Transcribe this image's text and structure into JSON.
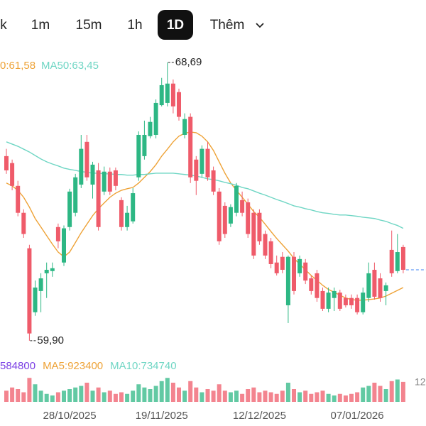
{
  "toolbar": {
    "tabs": [
      "k",
      "1m",
      "15m",
      "1h",
      "1D",
      "Thêm"
    ],
    "active": 4
  },
  "chart_data": {
    "type": "candlestick",
    "categories": [
      null,
      null,
      null,
      null,
      null,
      null,
      null,
      null,
      null,
      null,
      null,
      "28/10/2025",
      null,
      null,
      null,
      null,
      null,
      null,
      null,
      null,
      null,
      null,
      null,
      null,
      null,
      null,
      null,
      "19/11/2025",
      null,
      null,
      null,
      null,
      null,
      null,
      null,
      null,
      null,
      null,
      null,
      null,
      null,
      null,
      null,
      null,
      "12/12/2025",
      null,
      null,
      null,
      null,
      null,
      null,
      null,
      null,
      null,
      null,
      null,
      null,
      null,
      null,
      null,
      null,
      "07/01/2026",
      null,
      null,
      null,
      null,
      null,
      null,
      null,
      null
    ],
    "open": [
      65.73,
      65.51,
      64.79,
      63.94,
      62.82,
      60.8,
      61.47,
      62.03,
      62.1,
      63.49,
      62.37,
      63.49,
      63.94,
      64.83,
      66.18,
      64.83,
      65.28,
      64.61,
      65.24,
      65.28,
      64.34,
      63.49,
      63.67,
      65.06,
      65.73,
      66.36,
      66.4,
      67.34,
      67.41,
      68.02,
      67.75,
      66.4,
      66.97,
      65.62,
      65.17,
      65.96,
      65.28,
      64.61,
      64.16,
      63.6,
      63.94,
      64.34,
      64.27,
      63.94,
      63.94,
      63.27,
      63.04,
      62.37,
      62.55,
      61.02,
      62.55,
      62.03,
      62.37,
      61.87,
      62.03,
      61.47,
      60.91,
      61.25,
      61.42,
      61.25,
      61.25,
      61.25,
      60.8,
      61.25,
      62.14,
      61.87,
      61.47,
      62.77,
      62.1,
      62.86
    ],
    "close": [
      65.28,
      64.79,
      63.94,
      63.27,
      60.13,
      61.58,
      61.87,
      62.14,
      62.19,
      63.04,
      63.45,
      64.61,
      65.06,
      65.96,
      65.06,
      65.46,
      63.49,
      65.24,
      64.61,
      64.79,
      63.49,
      63.94,
      64.56,
      66.4,
      66.4,
      66.81,
      67.41,
      67.97,
      68.02,
      67.3,
      66.97,
      66.9,
      65.06,
      64.95,
      65.96,
      65.06,
      64.61,
      63.04,
      63.27,
      64.12,
      64.79,
      63.94,
      63.27,
      62.59,
      63.04,
      62.59,
      62.32,
      62.03,
      62.14,
      62.55,
      61.47,
      62.48,
      61.8,
      61.47,
      61.25,
      60.91,
      61.42,
      61.47,
      60.91,
      61.02,
      61.02,
      60.8,
      61.42,
      62.03,
      61.29,
      61.25,
      61.65,
      62.03,
      62.7,
      62.14
    ],
    "high": [
      65.96,
      65.62,
      64.95,
      64.05,
      62.93,
      61.8,
      62.03,
      62.37,
      62.37,
      63.6,
      63.54,
      64.7,
      65.17,
      66.4,
      66.4,
      65.55,
      65.51,
      65.4,
      65.37,
      65.37,
      64.43,
      64.16,
      64.72,
      66.51,
      66.85,
      66.97,
      67.52,
      68.2,
      68.69,
      68.15,
      67.86,
      67.08,
      67.08,
      65.73,
      66.07,
      66.18,
      65.4,
      64.72,
      64.27,
      64.21,
      64.88,
      64.61,
      64.39,
      64.05,
      64.05,
      63.38,
      63.15,
      62.59,
      62.7,
      62.59,
      62.7,
      62.59,
      62.48,
      61.96,
      62.14,
      61.58,
      61.58,
      61.58,
      61.51,
      61.36,
      61.36,
      61.36,
      61.58,
      62.37,
      62.37,
      62.03,
      61.74,
      63.38,
      63.27,
      62.93
    ],
    "low": [
      65.17,
      64.65,
      63.83,
      63.15,
      59.9,
      60.69,
      60.8,
      61.25,
      61.92,
      62.82,
      62.26,
      63.38,
      63.83,
      64.72,
      64.95,
      64.39,
      63.38,
      64.5,
      64.5,
      64.65,
      63.38,
      63.38,
      63.6,
      64.95,
      65.62,
      66.29,
      66.29,
      67.3,
      67.3,
      67.08,
      66.85,
      66.29,
      64.88,
      64.5,
      65.06,
      64.95,
      64.5,
      62.93,
      63.15,
      63.49,
      63.83,
      63.83,
      63.15,
      62.48,
      62.93,
      62.48,
      62.19,
      61.96,
      62.03,
      60.46,
      61.36,
      61.92,
      61.69,
      61.36,
      61.13,
      60.84,
      60.8,
      60.84,
      60.84,
      60.95,
      60.91,
      60.73,
      60.73,
      61.13,
      61.2,
      61.13,
      61.02,
      61.92,
      62.03,
      62.03
    ],
    "high_labels": [
      null,
      null,
      null,
      null,
      null,
      null,
      null,
      null,
      null,
      null,
      null,
      null,
      null,
      null,
      null,
      null,
      null,
      null,
      null,
      null,
      null,
      null,
      null,
      null,
      null,
      null,
      null,
      null,
      "68,69",
      null,
      null,
      null,
      null,
      null,
      null,
      null,
      null,
      null,
      null,
      null,
      null,
      null,
      null,
      null,
      null,
      null,
      null,
      null,
      null,
      null,
      null,
      null,
      null,
      null,
      null,
      null,
      null,
      null,
      null,
      null,
      null,
      null,
      null,
      null,
      null,
      null,
      null,
      null,
      null,
      null
    ],
    "low_labels": [
      null,
      null,
      null,
      null,
      "59,90",
      null,
      null,
      null,
      null,
      null,
      null,
      null,
      null,
      null,
      null,
      null,
      null,
      null,
      null,
      null,
      null,
      null,
      null,
      null,
      null,
      null,
      null,
      null,
      null,
      null,
      null,
      null,
      null,
      null,
      null,
      null,
      null,
      null,
      null,
      null,
      null,
      null,
      null,
      null,
      null,
      null,
      null,
      null,
      null,
      null,
      null,
      null,
      null,
      null,
      null,
      null,
      null,
      null,
      null,
      null,
      null,
      null,
      null,
      null,
      null,
      null,
      null,
      null,
      null,
      null
    ],
    "up_color": "#2db784",
    "down_color": "#ef5b6a",
    "last_price_color": "#3b82f6",
    "ylim": [
      59.45,
      69.09
    ],
    "ma": [
      {
        "name": "0:61,58",
        "color": "#eea236",
        "values": [
          64.88,
          64.79,
          64.65,
          64.43,
          64.12,
          63.76,
          63.49,
          63.22,
          62.95,
          62.7,
          62.55,
          62.7,
          63.0,
          63.31,
          63.58,
          63.85,
          64.07,
          64.25,
          64.43,
          64.56,
          64.65,
          64.7,
          64.74,
          64.88,
          65.06,
          65.24,
          65.46,
          65.73,
          65.95,
          66.18,
          66.36,
          66.45,
          66.49,
          66.47,
          66.36,
          66.18,
          65.91,
          65.55,
          65.19,
          64.88,
          64.65,
          64.43,
          64.21,
          63.98,
          63.8,
          63.58,
          63.35,
          63.13,
          62.93,
          62.73,
          62.5,
          62.32,
          62.14,
          61.96,
          61.81,
          61.65,
          61.52,
          61.43,
          61.34,
          61.25,
          61.2,
          61.18,
          61.18,
          61.2,
          61.22,
          61.25,
          61.31,
          61.4,
          61.49,
          61.58
        ]
      },
      {
        "name": "MA50:63,45",
        "color": "#6fd6c4",
        "values": [
          66.18,
          66.11,
          66.04,
          65.95,
          65.86,
          65.75,
          65.64,
          65.55,
          65.48,
          65.42,
          65.35,
          65.31,
          65.28,
          65.24,
          65.22,
          65.19,
          65.19,
          65.17,
          65.17,
          65.15,
          65.15,
          65.13,
          65.13,
          65.15,
          65.15,
          65.17,
          65.19,
          65.19,
          65.19,
          65.19,
          65.17,
          65.15,
          65.13,
          65.1,
          65.06,
          65.01,
          64.99,
          64.95,
          64.9,
          64.86,
          64.81,
          64.74,
          64.7,
          64.63,
          64.56,
          64.5,
          64.43,
          64.36,
          64.3,
          64.23,
          64.16,
          64.12,
          64.07,
          64.03,
          63.98,
          63.94,
          63.92,
          63.89,
          63.87,
          63.87,
          63.85,
          63.83,
          63.8,
          63.78,
          63.76,
          63.71,
          63.67,
          63.6,
          63.54,
          63.45
        ]
      }
    ],
    "volume": {
      "values": [
        700000,
        900000,
        800000,
        600000,
        1500000,
        1100000,
        700000,
        500000,
        400000,
        600000,
        700000,
        800000,
        900000,
        1000000,
        1200000,
        700000,
        900000,
        600000,
        700000,
        500000,
        600000,
        500000,
        700000,
        1100000,
        900000,
        800000,
        1000000,
        1300000,
        1500000,
        1200000,
        900000,
        700000,
        1300000,
        900000,
        600000,
        800000,
        700000,
        1100000,
        700000,
        600000,
        700000,
        500000,
        800000,
        900000,
        600000,
        700000,
        600000,
        500000,
        700000,
        1200000,
        800000,
        600000,
        700000,
        500000,
        600000,
        700000,
        500000,
        400000,
        500000,
        400000,
        500000,
        600000,
        900000,
        1000000,
        1200000,
        1000000,
        800000,
        1300000,
        1400000,
        1250000
      ],
      "ylim": [
        0,
        1600000
      ],
      "yticks": [
        {
          "value": 1200000,
          "label": "12"
        }
      ],
      "legend": [
        {
          "text": "584800",
          "color": "#7b3fe4"
        },
        {
          "text": "MA5:923400",
          "color": "#eea236"
        },
        {
          "text": "MA10:734740",
          "color": "#6fd6c4"
        }
      ]
    }
  }
}
